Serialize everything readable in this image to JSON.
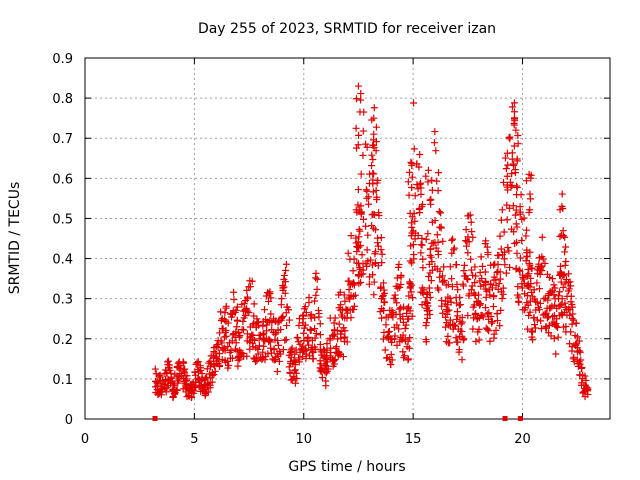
{
  "chart_data": {
    "type": "scatter",
    "title": "Day 255 of 2023, SRMTID for receiver izan",
    "xlabel": "GPS time / hours",
    "ylabel": "SRMTID / TECUs",
    "xlim": [
      0,
      24
    ],
    "ylim": [
      0,
      0.9
    ],
    "x_ticks": [
      "0",
      "5",
      "10",
      "15",
      "20"
    ],
    "y_ticks": [
      "0",
      "0.1",
      "0.2",
      "0.3",
      "0.4",
      "0.5",
      "0.6",
      "0.7",
      "0.8",
      "0.9"
    ],
    "grid": true,
    "marker": "+",
    "marker_color": "#e00000",
    "series": [
      {
        "name": "SRMTID",
        "x": [
          3.2,
          3.4,
          3.6,
          3.8,
          4.0,
          4.2,
          4.4,
          4.6,
          4.8,
          5.0,
          5.2,
          5.4,
          5.6,
          5.8,
          6.0,
          6.2,
          6.4,
          6.6,
          6.8,
          7.0,
          7.2,
          7.4,
          7.6,
          7.8,
          8.0,
          8.2,
          8.4,
          8.6,
          8.8,
          9.0,
          9.2,
          9.4,
          9.6,
          9.8,
          10.0,
          10.2,
          10.4,
          10.6,
          10.8,
          11.0,
          11.2,
          11.4,
          11.6,
          11.8,
          12.0,
          12.2,
          12.4,
          12.6,
          12.8,
          13.0,
          13.2,
          13.4,
          13.6,
          13.8,
          14.0,
          14.2,
          14.4,
          14.6,
          14.8,
          15.0,
          15.2,
          15.4,
          15.6,
          15.8,
          16.0,
          16.2,
          16.4,
          16.6,
          16.8,
          17.0,
          17.2,
          17.4,
          17.6,
          17.8,
          18.0,
          18.2,
          18.4,
          18.6,
          18.8,
          19.0,
          19.2,
          19.4,
          19.6,
          19.8,
          20.0,
          20.2,
          20.4,
          20.6,
          20.8,
          21.0,
          21.2,
          21.4,
          21.6,
          21.8,
          22.0,
          22.2,
          22.4,
          22.6,
          22.8
        ],
        "y": [
          0.1,
          0.08,
          0.09,
          0.11,
          0.08,
          0.1,
          0.12,
          0.09,
          0.07,
          0.1,
          0.11,
          0.08,
          0.1,
          0.12,
          0.15,
          0.2,
          0.22,
          0.18,
          0.25,
          0.2,
          0.22,
          0.24,
          0.28,
          0.2,
          0.17,
          0.22,
          0.25,
          0.2,
          0.18,
          0.24,
          0.3,
          0.15,
          0.12,
          0.2,
          0.22,
          0.24,
          0.2,
          0.3,
          0.15,
          0.12,
          0.2,
          0.18,
          0.25,
          0.22,
          0.3,
          0.35,
          0.4,
          0.45,
          0.62,
          0.5,
          0.7,
          0.45,
          0.3,
          0.22,
          0.2,
          0.25,
          0.3,
          0.2,
          0.22,
          0.6,
          0.55,
          0.45,
          0.2,
          0.5,
          0.58,
          0.45,
          0.3,
          0.25,
          0.35,
          0.28,
          0.2,
          0.35,
          0.4,
          0.3,
          0.25,
          0.35,
          0.32,
          0.28,
          0.3,
          0.35,
          0.5,
          0.55,
          0.62,
          0.45,
          0.4,
          0.35,
          0.3,
          0.28,
          0.32,
          0.35,
          0.3,
          0.28,
          0.2,
          0.45,
          0.3,
          0.25,
          0.2,
          0.15,
          0.08
        ],
        "extremes": {
          "x": [
            12.5,
            13.2,
            14.9,
            15.7,
            19.7,
            20.3,
            21.8
          ],
          "y": [
            0.83,
            0.75,
            0.64,
            0.62,
            0.72,
            0.61,
            0.53
          ]
        },
        "zero_marks_x": [
          3.2,
          19.2,
          19.9
        ]
      }
    ]
  }
}
